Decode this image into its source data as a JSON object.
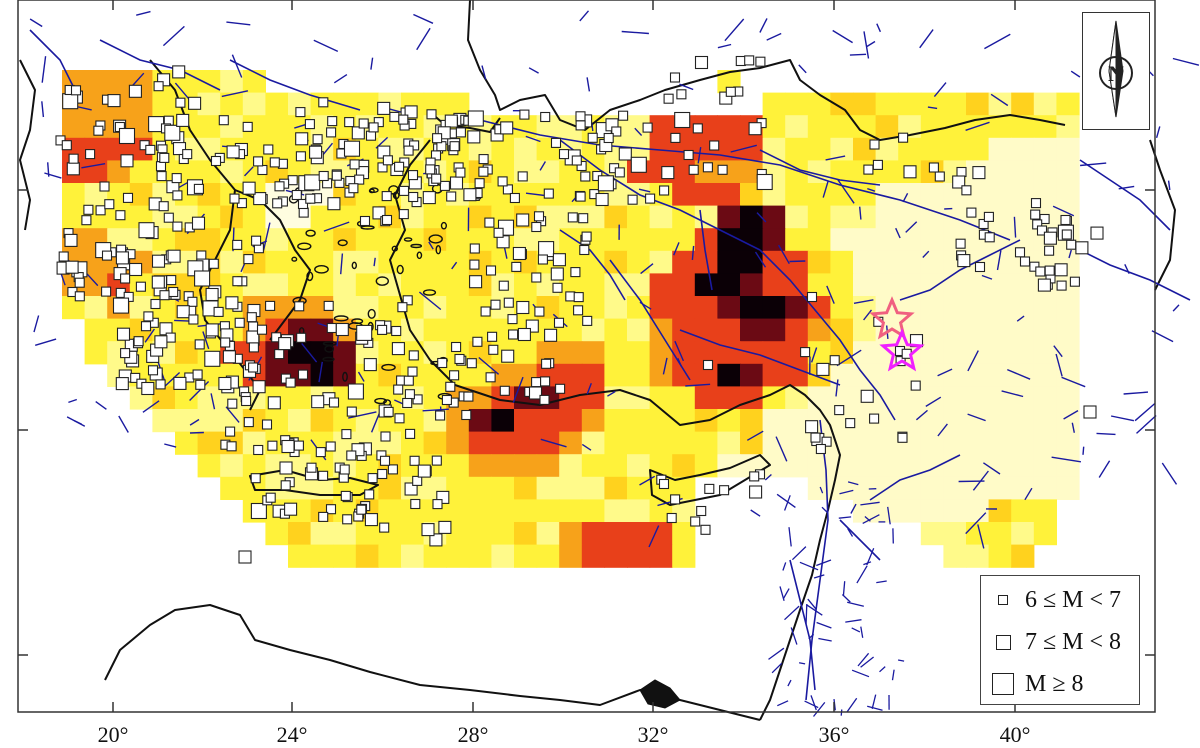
{
  "map": {
    "axis": {
      "x_ticks": [
        {
          "label": "20°",
          "lon": 20
        },
        {
          "label": "24°",
          "lon": 24
        },
        {
          "label": "28°",
          "lon": 28
        },
        {
          "label": "32°",
          "lon": 32
        },
        {
          "label": "36°",
          "lon": 36
        },
        {
          "label": "40°",
          "lon": 40
        }
      ]
    },
    "north_arrow": {
      "label": "N"
    },
    "legend": {
      "items": [
        {
          "label": "6 ≤ M < 7",
          "symbol": "small-square"
        },
        {
          "label": "7 ≤ M < 8",
          "symbol": "medium-square"
        },
        {
          "label": "M ≥ 8",
          "symbol": "large-square"
        }
      ]
    },
    "colors": {
      "land_outline": "#111111",
      "faults": "#1a1aa0",
      "intensity_low": "#fffbc8",
      "intensity_mid": "#fff23a",
      "intensity_high": "#f7a21a",
      "intensity_higher": "#e8401a",
      "intensity_max": "#6b0a14",
      "intensity_peak": "#0b0006",
      "epicenter_stars": [
        "#f06080",
        "#f020ff"
      ]
    }
  }
}
